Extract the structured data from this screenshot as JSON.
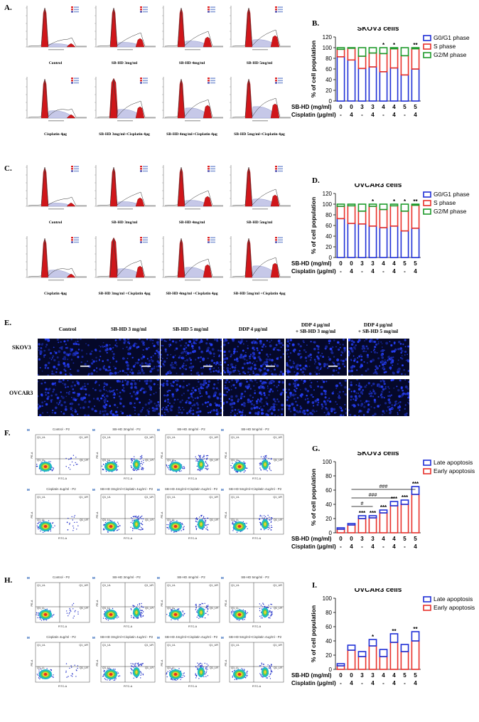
{
  "panels": {
    "a": "A.",
    "b": "B.",
    "c": "C.",
    "d": "D.",
    "e": "E.",
    "f": "F.",
    "g": "G.",
    "h": "H.",
    "i": "I."
  },
  "histA_captions": [
    "Control",
    "SB-HD 3mg/ml",
    "SB-HD 4mg/ml",
    "SB-HD 5mg/ml",
    "Cisplatin 4μg",
    "SB-HD 3mg/ml+Cisplatin 4μg",
    "SB-HD 4mg/ml+Cisplatin 4μg",
    "SB-HD 5mg/ml+Cisplatin 4μg"
  ],
  "histC_captions": [
    "Control",
    "SB-HD 3mg/ml",
    "SB-HD 4mg/ml",
    "SB-HD 5mg/ml",
    "Cisplatin 4μg",
    "SB-HD 3mg/ml +Cisplatin 4μg",
    "SB-HD 4mg/ml +Cisplatin 4μg",
    "SB-HD 5mg/ml +Cisplatin 4μg"
  ],
  "micro": {
    "col_headers": [
      "Control",
      "SB-HD 3 mg/ml",
      "SB-HD 5 mg/ml",
      "DDP 4 μg/ml",
      "DDP 4 μg/ml\n+ SB-HD 3 mg/ml",
      "DDP 4 μg/ml\n+ SB-HD 5 mg/ml"
    ],
    "row_headers": [
      "SKOV3",
      "OVCAR3"
    ]
  },
  "flowF_titles": [
    "Control - P2",
    "SB-HD 3mg/ml - P2",
    "SB-HD 4mg/ml - P2",
    "SB-HD 5mg/ml - P2",
    "Cisplatin 4ug/ml - P2",
    "SB-HD 3mg/ml+Cisplatin 4ug/ml - P2",
    "SB-HD 4mg/ml+Cisplatin 4ug/ml - P2",
    "SB-HD 5mg/ml+Cisplatin 4ug/ml - P2"
  ],
  "flowH_titles": [
    "Control - P2",
    "SB-HD 3mg/ml - P2",
    "SB-HD 4mg/ml - P2",
    "SB-HD 5mg/ml - P2",
    "Cisplatin 4ug/ml - P2",
    "SB-HD 3mg/ml+Cisplatin 4ug/ml - P2",
    "SB-HD 4mg/ml+Cisplatin 4ug/ml - P2",
    "SB-HD 5mg/ml+Cisplatin 4ug/ml - P2"
  ],
  "flow_labels": {
    "ul": "Q1_UL",
    "ur": "Q1_UR",
    "ll": "Q1_LL",
    "lr": "Q1_LR",
    "xaxis": "FITC-A",
    "yaxis": "PE-A",
    "marker": "M"
  },
  "colors": {
    "blue": "#1f2fd6",
    "red": "#e8302a",
    "green": "#1d9a2a"
  },
  "chart_data": [
    {
      "id": "B",
      "type": "bar",
      "stacked": true,
      "title": "SKOV3 cells",
      "ylabel": "% of cell population",
      "ylim": [
        0,
        120
      ],
      "yticks": [
        0,
        20,
        40,
        60,
        80,
        100,
        120
      ],
      "row1_label": "SB-HD (mg/ml)",
      "row2_label": "Cisplatin (μg/ml)",
      "row1": [
        "0",
        "0",
        "3",
        "3",
        "4",
        "4",
        "5",
        "5"
      ],
      "row2": [
        "-",
        "4",
        "-",
        "4",
        "-",
        "4",
        "-",
        "4"
      ],
      "series": [
        {
          "name": "G0/G1 phase",
          "values": [
            83,
            77,
            61,
            64,
            55,
            62,
            49,
            60
          ]
        },
        {
          "name": "S phase",
          "values": [
            14,
            22,
            23,
            26,
            34,
            36,
            36,
            38
          ]
        },
        {
          "name": "G2/M phase",
          "values": [
            3,
            1,
            16,
            10,
            11,
            2,
            15,
            2
          ]
        }
      ],
      "sig": [
        "",
        "",
        "",
        "",
        "*",
        "*",
        "",
        "**"
      ]
    },
    {
      "id": "D",
      "type": "bar",
      "stacked": true,
      "title": "OVCAR3 cells",
      "ylabel": "% of cell population",
      "ylim": [
        0,
        120
      ],
      "yticks": [
        0,
        20,
        40,
        60,
        80,
        100,
        120
      ],
      "row1_label": "SB-HD (mg/ml)",
      "row2_label": "Cisplatin (μg/ml)",
      "row1": [
        "0",
        "0",
        "3",
        "3",
        "4",
        "4",
        "5",
        "5"
      ],
      "row2": [
        "-",
        "4",
        "-",
        "4",
        "-",
        "4",
        "-",
        "4"
      ],
      "series": [
        {
          "name": "G0/G1 phase",
          "values": [
            73,
            64,
            63,
            59,
            56,
            59,
            50,
            55
          ]
        },
        {
          "name": "S phase",
          "values": [
            23,
            33,
            24,
            37,
            34,
            38,
            37,
            43
          ]
        },
        {
          "name": "G2/M phase",
          "values": [
            4,
            3,
            13,
            4,
            10,
            3,
            13,
            2
          ]
        }
      ],
      "sig": [
        "",
        "",
        "",
        "*",
        "",
        "*",
        "*",
        "**"
      ]
    },
    {
      "id": "G",
      "type": "bar",
      "stacked": true,
      "title": "SKOV3 cells",
      "ylabel": "% of cell population",
      "ylim": [
        0,
        100
      ],
      "yticks": [
        0,
        20,
        40,
        60,
        80,
        100
      ],
      "row1_label": "SB-HD (mg/ml)",
      "row2_label": "Cisplatin (μg/ml)",
      "row1": [
        "0",
        "0",
        "3",
        "3",
        "4",
        "4",
        "5",
        "5"
      ],
      "row2": [
        "-",
        "4",
        "-",
        "4",
        "-",
        "4",
        "-",
        "4"
      ],
      "series": [
        {
          "name": "Early apoptosis",
          "values": [
            5,
            11,
            20,
            21,
            28,
            38,
            40,
            54
          ]
        },
        {
          "name": "Late apoptosis",
          "values": [
            2,
            2,
            4,
            3,
            4,
            6,
            6,
            11
          ]
        }
      ],
      "sig": [
        "",
        "",
        "***",
        "***",
        "***",
        "***",
        "***",
        "***"
      ],
      "brackets": [
        {
          "from": 1,
          "to": 3,
          "label": "#"
        },
        {
          "from": 1,
          "to": 5,
          "label": "###"
        },
        {
          "from": 1,
          "to": 7,
          "label": "###"
        }
      ]
    },
    {
      "id": "I",
      "type": "bar",
      "stacked": true,
      "title": "OVCAR3 cells",
      "ylabel": "% of cell population",
      "ylim": [
        0,
        100
      ],
      "yticks": [
        0,
        20,
        40,
        60,
        80,
        100
      ],
      "row1_label": "SB-HD (mg/ml)",
      "row2_label": "Cisplatin (μg/ml)",
      "row1": [
        "0",
        "0",
        "3",
        "3",
        "4",
        "4",
        "5",
        "5"
      ],
      "row2": [
        "-",
        "4",
        "-",
        "4",
        "-",
        "4",
        "-",
        "4"
      ],
      "series": [
        {
          "name": "Early apoptosis",
          "values": [
            5,
            27,
            18,
            33,
            18,
            38,
            25,
            40
          ]
        },
        {
          "name": "Late apoptosis",
          "values": [
            3,
            7,
            7,
            9,
            10,
            12,
            10,
            13
          ]
        }
      ],
      "sig": [
        "",
        "",
        "",
        "*",
        "",
        "**",
        "",
        "**"
      ]
    }
  ]
}
